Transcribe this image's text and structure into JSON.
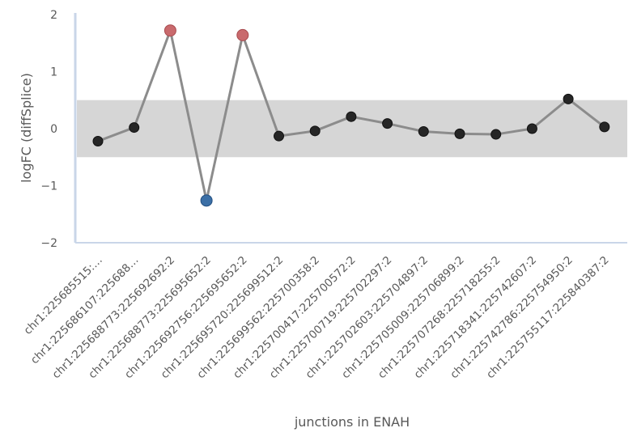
{
  "chart_data": {
    "type": "line",
    "xlabel": "junctions in ENAH",
    "ylabel": "logFC (diffSplice)",
    "ylim": [
      -2,
      2
    ],
    "yticks": [
      "2",
      "1",
      "0",
      "−1",
      "−2"
    ],
    "threshold_band": [
      -0.5,
      0.5
    ],
    "categories": [
      "chr1:225685515:…",
      "chr1:225686107:225688…",
      "chr1:225688773:225692692:2",
      "chr1:225688773:225695652:2",
      "chr1:225692756:225695652:2",
      "chr1:225695720:225699512:2",
      "chr1:225699562:225700358:2",
      "chr1:225700417:225700572:2",
      "chr1:225700719:225702297:2",
      "chr1:225702603:225704897:2",
      "chr1:225705009:225706899:2",
      "chr1:225707268:225718255:2",
      "chr1:225718341:225742607:2",
      "chr1:225742786:225754950:2",
      "chr1:225755117:225840387:2"
    ],
    "values": [
      -0.22,
      0.02,
      1.72,
      -1.26,
      1.64,
      -0.13,
      -0.04,
      0.21,
      0.09,
      -0.05,
      -0.09,
      -0.1,
      0.0,
      0.52,
      0.03
    ],
    "point_status": [
      "neutral",
      "neutral",
      "up",
      "down",
      "up",
      "neutral",
      "neutral",
      "neutral",
      "neutral",
      "neutral",
      "neutral",
      "neutral",
      "neutral",
      "neutral",
      "neutral"
    ],
    "colors": {
      "line": "#8c8c8c",
      "neutral": "#262626",
      "up": "#c96a6d",
      "down": "#3b6fa6",
      "band": "#d6d6d6",
      "axis": "#c9d6e8"
    }
  }
}
